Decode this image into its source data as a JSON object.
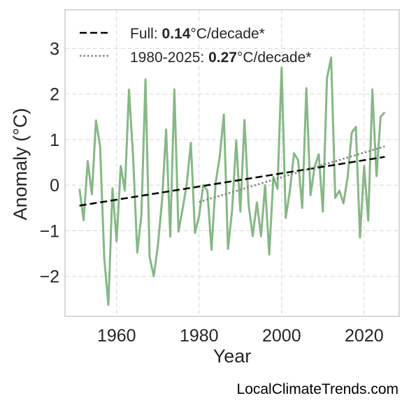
{
  "chart_data": {
    "type": "line",
    "xlabel": "Year",
    "ylabel": "Anomaly (°C)",
    "xlim": [
      1947.5,
      2028.5
    ],
    "ylim": [
      -2.88,
      3.85
    ],
    "xticks": [
      1960,
      1980,
      2000,
      2020
    ],
    "yticks": [
      -2,
      -1,
      0,
      1,
      2,
      3
    ],
    "ytick_labels": [
      "−2",
      "−1",
      "0",
      "1",
      "2",
      "3"
    ],
    "grid": true,
    "legend_position": "top-left",
    "colors": {
      "series": "#86b885",
      "full_trend": "#000000",
      "recent_trend": "#808080"
    },
    "series": [
      {
        "x": [
          1951,
          1952,
          1953,
          1954,
          1955,
          1956,
          1957,
          1958,
          1959,
          1960,
          1961,
          1962,
          1963,
          1964,
          1965,
          1966,
          1967,
          1968,
          1969,
          1970,
          1971,
          1972,
          1973,
          1974,
          1975,
          1976,
          1977,
          1978,
          1979,
          1980,
          1981,
          1982,
          1983,
          1984,
          1985,
          1986,
          1987,
          1988,
          1989,
          1990,
          1991,
          1992,
          1993,
          1994,
          1995,
          1996,
          1997,
          1998,
          1999,
          2000,
          2001,
          2002,
          2003,
          2004,
          2005,
          2006,
          2007,
          2008,
          2009,
          2010,
          2011,
          2012,
          2013,
          2014,
          2015,
          2016,
          2017,
          2018,
          2019,
          2020,
          2021,
          2022,
          2023,
          2024,
          2025
        ],
        "values": [
          -0.08,
          -0.77,
          0.53,
          -0.2,
          1.42,
          0.85,
          -1.6,
          -2.63,
          -0.07,
          -1.23,
          0.42,
          -0.12,
          2.1,
          0.62,
          -1.48,
          -0.67,
          2.32,
          -1.57,
          -2.0,
          -1.33,
          -0.35,
          1.22,
          -1.13,
          2.1,
          -1.02,
          -0.52,
          0.02,
          0.93,
          -1.05,
          -0.68,
          0.0,
          -0.12,
          -1.42,
          0.05,
          0.63,
          1.55,
          -1.4,
          -0.55,
          0.98,
          -0.58,
          1.43,
          -0.43,
          -1.12,
          -0.38,
          -1.12,
          0.0,
          -1.52,
          0.18,
          -0.08,
          2.58,
          -0.72,
          -0.12,
          0.7,
          0.55,
          -0.5,
          2.13,
          -0.22,
          0.4,
          0.68,
          -0.58,
          2.35,
          2.8,
          -0.28,
          -0.12,
          -0.4,
          0.17,
          1.15,
          1.28,
          -1.15,
          0.42,
          -0.78,
          2.1,
          0.2,
          1.5,
          1.6
        ]
      }
    ],
    "trends": [
      {
        "style": "dashed",
        "x": [
          1951,
          2025
        ],
        "values": [
          -0.45,
          0.62
        ]
      },
      {
        "style": "dotted",
        "x": [
          1980,
          2025
        ],
        "values": [
          -0.37,
          0.85
        ]
      }
    ],
    "legend": [
      {
        "prefix": "Full: ",
        "value": "0.14",
        "suffix": "°C/decade*"
      },
      {
        "prefix": "1980-2025: ",
        "value": "0.27",
        "suffix": "°C/decade*"
      }
    ]
  },
  "credit": "LocalClimateTrends.com"
}
